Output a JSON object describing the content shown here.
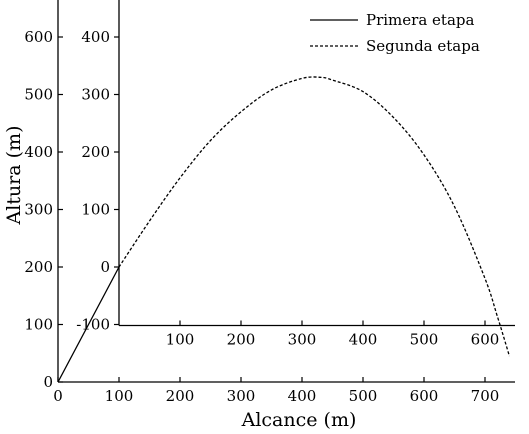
{
  "chart_data": {
    "type": "line",
    "title": "",
    "xlabel": "Alcance (m)",
    "ylabel": "Altura (m)",
    "xlim": [
      0,
      750
    ],
    "ylim": [
      0,
      620
    ],
    "x_ticks": [
      0,
      100,
      200,
      300,
      400,
      500,
      600,
      700
    ],
    "y_ticks": [
      0,
      100,
      200,
      300,
      400,
      500,
      600
    ],
    "inner_axes": {
      "origin": [
        100,
        200
      ],
      "x_ticks": [
        100,
        200,
        300,
        400,
        500,
        600
      ],
      "y_ticks": [
        -100,
        0,
        100,
        200,
        300,
        400
      ]
    },
    "legend": {
      "position": "top-right",
      "entries": [
        {
          "label": "Primera etapa",
          "style": "solid"
        },
        {
          "label": "Segunda etapa",
          "style": "dashed"
        }
      ]
    },
    "series": [
      {
        "name": "Primera etapa",
        "style": "solid",
        "x": [
          0,
          100
        ],
        "y": [
          0,
          200
        ]
      },
      {
        "name": "Segunda etapa",
        "style": "dashed",
        "x": [
          100,
          150,
          200,
          250,
          300,
          350,
          400,
          430,
          450,
          500,
          550,
          600,
          650,
          700,
          720,
          740
        ],
        "y": [
          200,
          280,
          355,
          420,
          470,
          508,
          528,
          530,
          525,
          505,
          460,
          395,
          305,
          180,
          115,
          45
        ]
      }
    ]
  }
}
